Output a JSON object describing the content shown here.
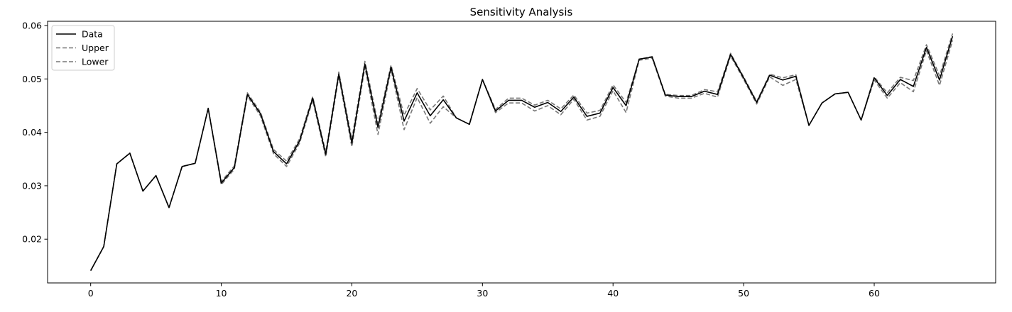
{
  "chart_data": {
    "type": "line",
    "title": "Sensitivity Analysis",
    "xlabel": "",
    "ylabel": "",
    "xlim": [
      -3.3,
      69.3
    ],
    "ylim": [
      0.0118,
      0.0608
    ],
    "xticks": [
      0,
      10,
      20,
      30,
      40,
      50,
      60
    ],
    "yticks": [
      0.02,
      0.03,
      0.04,
      0.05,
      0.06
    ],
    "xtick_labels": [
      "0",
      "10",
      "20",
      "30",
      "40",
      "50",
      "60"
    ],
    "ytick_labels": [
      "0.02",
      "0.03",
      "0.04",
      "0.05",
      "0.06"
    ],
    "grid": false,
    "legend_position": "top-left",
    "x": [
      0,
      1,
      2,
      3,
      4,
      5,
      6,
      7,
      8,
      9,
      10,
      11,
      12,
      13,
      14,
      15,
      16,
      17,
      18,
      19,
      20,
      21,
      22,
      23,
      24,
      25,
      26,
      27,
      28,
      29,
      30,
      31,
      32,
      33,
      34,
      35,
      36,
      37,
      38,
      39,
      40,
      41,
      42,
      43,
      44,
      45,
      46,
      47,
      48,
      49,
      50,
      51,
      52,
      53,
      54,
      55,
      56,
      57,
      58,
      59,
      60,
      61,
      62,
      63,
      64,
      65,
      66
    ],
    "series": [
      {
        "name": "Data",
        "color": "#000000",
        "style": "solid",
        "values": [
          0.0141,
          0.0186,
          0.0341,
          0.0361,
          0.029,
          0.0319,
          0.0259,
          0.0336,
          0.0342,
          0.0445,
          0.0305,
          0.0334,
          0.0471,
          0.0435,
          0.0364,
          0.0341,
          0.0384,
          0.0464,
          0.0359,
          0.0509,
          0.038,
          0.0528,
          0.0409,
          0.0522,
          0.0421,
          0.0474,
          0.0431,
          0.0461,
          0.0427,
          0.0415,
          0.0499,
          0.044,
          0.046,
          0.046,
          0.0447,
          0.0456,
          0.0439,
          0.0466,
          0.043,
          0.0436,
          0.0484,
          0.045,
          0.0537,
          0.0541,
          0.047,
          0.0467,
          0.0467,
          0.0477,
          0.0471,
          0.0546,
          0.0502,
          0.0456,
          0.0507,
          0.0498,
          0.0505,
          0.0413,
          0.0455,
          0.0472,
          0.0475,
          0.0423,
          0.0502,
          0.0469,
          0.0499,
          0.0486,
          0.0559,
          0.0498,
          0.058
        ]
      },
      {
        "name": "Upper",
        "color": "#777777",
        "style": "dashed",
        "values": [
          0.0141,
          0.0186,
          0.0341,
          0.0361,
          0.029,
          0.0319,
          0.0259,
          0.0336,
          0.0342,
          0.0445,
          0.0308,
          0.0337,
          0.0474,
          0.0438,
          0.0368,
          0.0346,
          0.0388,
          0.0467,
          0.0363,
          0.0513,
          0.0387,
          0.0533,
          0.0417,
          0.0526,
          0.0432,
          0.0482,
          0.0442,
          0.0468,
          0.0427,
          0.0415,
          0.0499,
          0.0443,
          0.0464,
          0.0464,
          0.0451,
          0.046,
          0.0444,
          0.047,
          0.0436,
          0.0441,
          0.0489,
          0.0456,
          0.0537,
          0.0542,
          0.0471,
          0.0469,
          0.0469,
          0.048,
          0.0476,
          0.0548,
          0.0504,
          0.0458,
          0.0509,
          0.0502,
          0.0508,
          0.0413,
          0.0455,
          0.0472,
          0.0475,
          0.0423,
          0.0504,
          0.0474,
          0.0503,
          0.0497,
          0.0564,
          0.0506,
          0.0585
        ]
      },
      {
        "name": "Lower",
        "color": "#777777",
        "style": "dashed",
        "values": [
          0.0141,
          0.0186,
          0.0341,
          0.0361,
          0.029,
          0.0319,
          0.0259,
          0.0336,
          0.0342,
          0.0445,
          0.0302,
          0.0331,
          0.0468,
          0.0431,
          0.036,
          0.0336,
          0.038,
          0.046,
          0.0354,
          0.0505,
          0.0373,
          0.0522,
          0.0396,
          0.0518,
          0.0405,
          0.0465,
          0.0417,
          0.0448,
          0.0427,
          0.0415,
          0.0499,
          0.0437,
          0.0455,
          0.0455,
          0.044,
          0.045,
          0.0433,
          0.0462,
          0.0423,
          0.043,
          0.0478,
          0.0437,
          0.0535,
          0.0539,
          0.0468,
          0.0464,
          0.0464,
          0.0473,
          0.0466,
          0.0543,
          0.0499,
          0.0453,
          0.0504,
          0.0488,
          0.0499,
          0.0413,
          0.0455,
          0.0472,
          0.0475,
          0.0423,
          0.0498,
          0.0464,
          0.0493,
          0.0476,
          0.0553,
          0.0488,
          0.0572
        ]
      }
    ]
  }
}
